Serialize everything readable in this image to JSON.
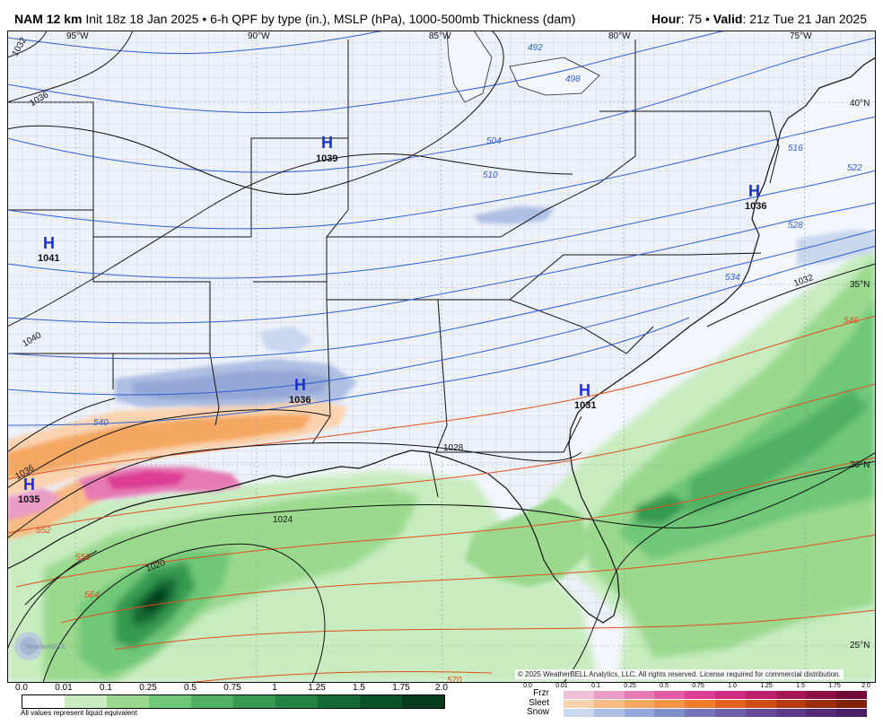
{
  "header": {
    "model": "NAM 12 km",
    "init": "Init 18z 18 Jan 2025",
    "product": "6-h QPF by type (in.), MSLP (hPa), 1000-500mb Thickness (dam)",
    "hour_label": "Hour",
    "hour_value": "75",
    "valid_label": "Valid",
    "valid_value": "21z Tue 21 Jan 2025"
  },
  "map": {
    "lon_labels": [
      "95°W",
      "90°W",
      "85°W",
      "80°W",
      "75°W"
    ],
    "lat_labels": [
      "40°N",
      "35°N",
      "30°N",
      "25°N"
    ],
    "highs": [
      {
        "symbol": "H",
        "value": "1039"
      },
      {
        "symbol": "H",
        "value": "1041"
      },
      {
        "symbol": "H",
        "value": "1036"
      },
      {
        "symbol": "H",
        "value": "1031"
      },
      {
        "symbol": "H",
        "value": "1035"
      },
      {
        "symbol": "H",
        "value": "1036"
      }
    ],
    "isobar_labels": [
      "1032",
      "1036",
      "1040",
      "1036",
      "1028",
      "1024",
      "1020",
      "1032"
    ],
    "thickness_labels": [
      "492",
      "498",
      "504",
      "510",
      "516",
      "522",
      "528",
      "534",
      "540",
      "546",
      "552",
      "558",
      "564",
      "570"
    ],
    "colors": {
      "land": "#eef2fa",
      "ocean": "#f3f6fd",
      "state_border": "#111111",
      "county_border": "#b7bccb",
      "isobar": "#111111",
      "thickness_cold": "#2f5fd0",
      "thickness_warm": "#e05020",
      "rain": "#5cbd6b",
      "snow": "#8fa6d6",
      "sleet": "#f5a862",
      "frzr": "#e05fa5"
    }
  },
  "copyright": "© 2025 WeatherBELL Analytics, LLC. All rights reserved. License required for commercial distribution.",
  "logo_text": "WeatherBELL",
  "legend": {
    "qpf_ticks": [
      "0.0",
      "0.01",
      "0.1",
      "0.25",
      "0.5",
      "0.75",
      "1",
      "1.25",
      "1.5",
      "1.75",
      "2.0"
    ],
    "qpf_colors": [
      "#ffffff",
      "#c8ecc0",
      "#9ad98e",
      "#6fc778",
      "#4fb062",
      "#36994f",
      "#228242",
      "#136a34",
      "#0a5327",
      "#053d1c"
    ],
    "note": "All values represent liquid equivalent",
    "ptype_ticks": [
      "0.0",
      "0.01",
      "0.1",
      "0.25",
      "0.5",
      "0.75",
      "1.0",
      "1.25",
      "1.5",
      "1.75",
      "2.0"
    ],
    "ptypes": [
      {
        "label": "Frzr",
        "colors": [
          "#f0c0d8",
          "#ea9bc6",
          "#e67ab5",
          "#e25aa4",
          "#dd3d95",
          "#cf2b80",
          "#bd1f6b",
          "#a51657",
          "#8c0f47",
          "#720a38"
        ]
      },
      {
        "label": "Sleet",
        "colors": [
          "#fbd3b0",
          "#f9bb86",
          "#f5a862",
          "#f39447",
          "#ee7d30",
          "#e3621f",
          "#d04c18",
          "#b63a14",
          "#9a2c10",
          "#7e200c"
        ]
      },
      {
        "label": "Snow",
        "colors": [
          "#c9d7ef",
          "#aebfe3",
          "#94a7d6",
          "#7f8fc7",
          "#7575b8",
          "#6e5fa8",
          "#674a98",
          "#5e3988",
          "#552b77",
          "#4a1f66"
        ]
      }
    ]
  }
}
